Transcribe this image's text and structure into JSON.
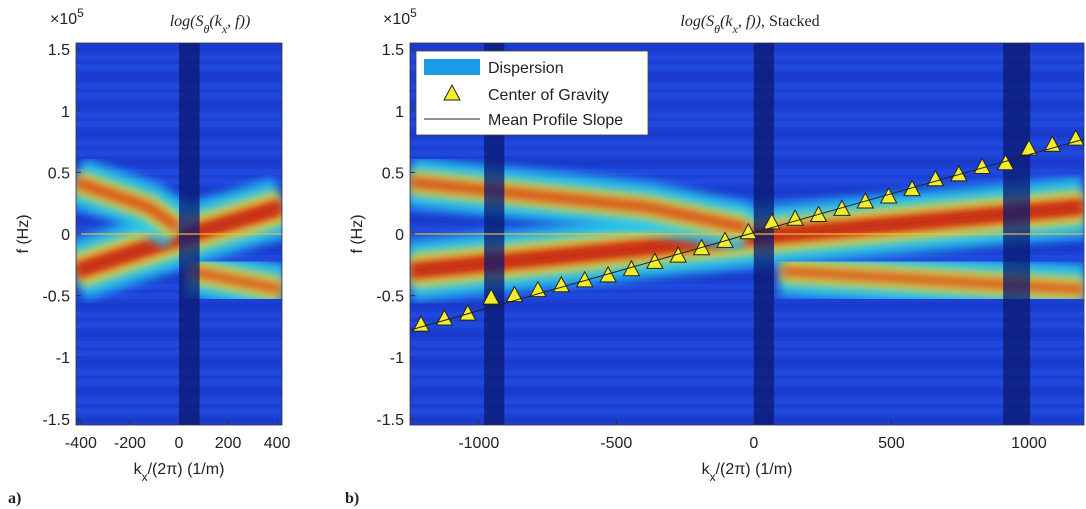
{
  "chart_data": [
    {
      "type": "heatmap",
      "panel_label": "a)",
      "title": [
        {
          "text": "log(S"
        },
        {
          "text": "θ",
          "sub": true
        },
        {
          "text": "(k"
        },
        {
          "text": "x",
          "sub": true
        },
        {
          "text": ", f))"
        }
      ],
      "y_scale": {
        "base": "×10",
        "exponent": "5"
      },
      "xlabel": [
        {
          "text": "k"
        },
        {
          "text": "x",
          "sub": true
        },
        {
          "text": "/(2π) (1/m)"
        }
      ],
      "ylabel": "f (Hz)",
      "xlim": [
        -420,
        420
      ],
      "xticks": [
        -400,
        -200,
        0,
        200,
        400
      ],
      "ylim": [
        -1.55,
        1.55
      ],
      "yticks": [
        -1.5,
        -1,
        -0.5,
        0,
        0.5,
        1,
        1.5
      ]
    },
    {
      "type": "heatmap",
      "panel_label": "b)",
      "title": [
        {
          "text": "log(S"
        },
        {
          "text": "θ",
          "sub": true
        },
        {
          "text": "(k"
        },
        {
          "text": "x",
          "sub": true
        },
        {
          "text": ", f)),"
        },
        {
          "text": " Stacked",
          "roman": true
        }
      ],
      "y_scale": {
        "base": "×10",
        "exponent": "5"
      },
      "xlabel": [
        {
          "text": "k"
        },
        {
          "text": "x",
          "sub": true
        },
        {
          "text": "/(2π) (1/m)"
        }
      ],
      "ylabel": "f (Hz)",
      "xlim": [
        -1250,
        1200
      ],
      "xticks": [
        -1000,
        -500,
        0,
        500,
        1000
      ],
      "ylim": [
        -1.55,
        1.55
      ],
      "yticks": [
        -1.5,
        -1,
        -0.5,
        0,
        0.5,
        1,
        1.5
      ],
      "legend": "upper left",
      "legend_patch": {
        "name": "Dispersion",
        "color": "#1e9be8"
      },
      "series": [
        {
          "name": "Center of Gravity",
          "kind": "scatter",
          "color": "#f2ee2a",
          "x": [
            -1210,
            -1125,
            -1040,
            -955,
            -870,
            -785,
            -700,
            -615,
            -530,
            -445,
            -360,
            -275,
            -190,
            -105,
            -20,
            65,
            150,
            235,
            320,
            405,
            490,
            575,
            660,
            745,
            830,
            915,
            1000,
            1085,
            1170
          ],
          "values": [
            -0.74,
            -0.69,
            -0.65,
            -0.52,
            -0.5,
            -0.46,
            -0.42,
            -0.38,
            -0.34,
            -0.29,
            -0.23,
            -0.18,
            -0.12,
            -0.06,
            0.01,
            0.09,
            0.12,
            0.15,
            0.2,
            0.26,
            0.3,
            0.36,
            0.44,
            0.48,
            0.54,
            0.57,
            0.69,
            0.72,
            0.77
          ]
        },
        {
          "name": "Mean Profile Slope",
          "kind": "line",
          "color": "#222222",
          "x": [
            -1250,
            1200
          ],
          "values": [
            -0.78,
            0.77
          ]
        }
      ]
    }
  ]
}
